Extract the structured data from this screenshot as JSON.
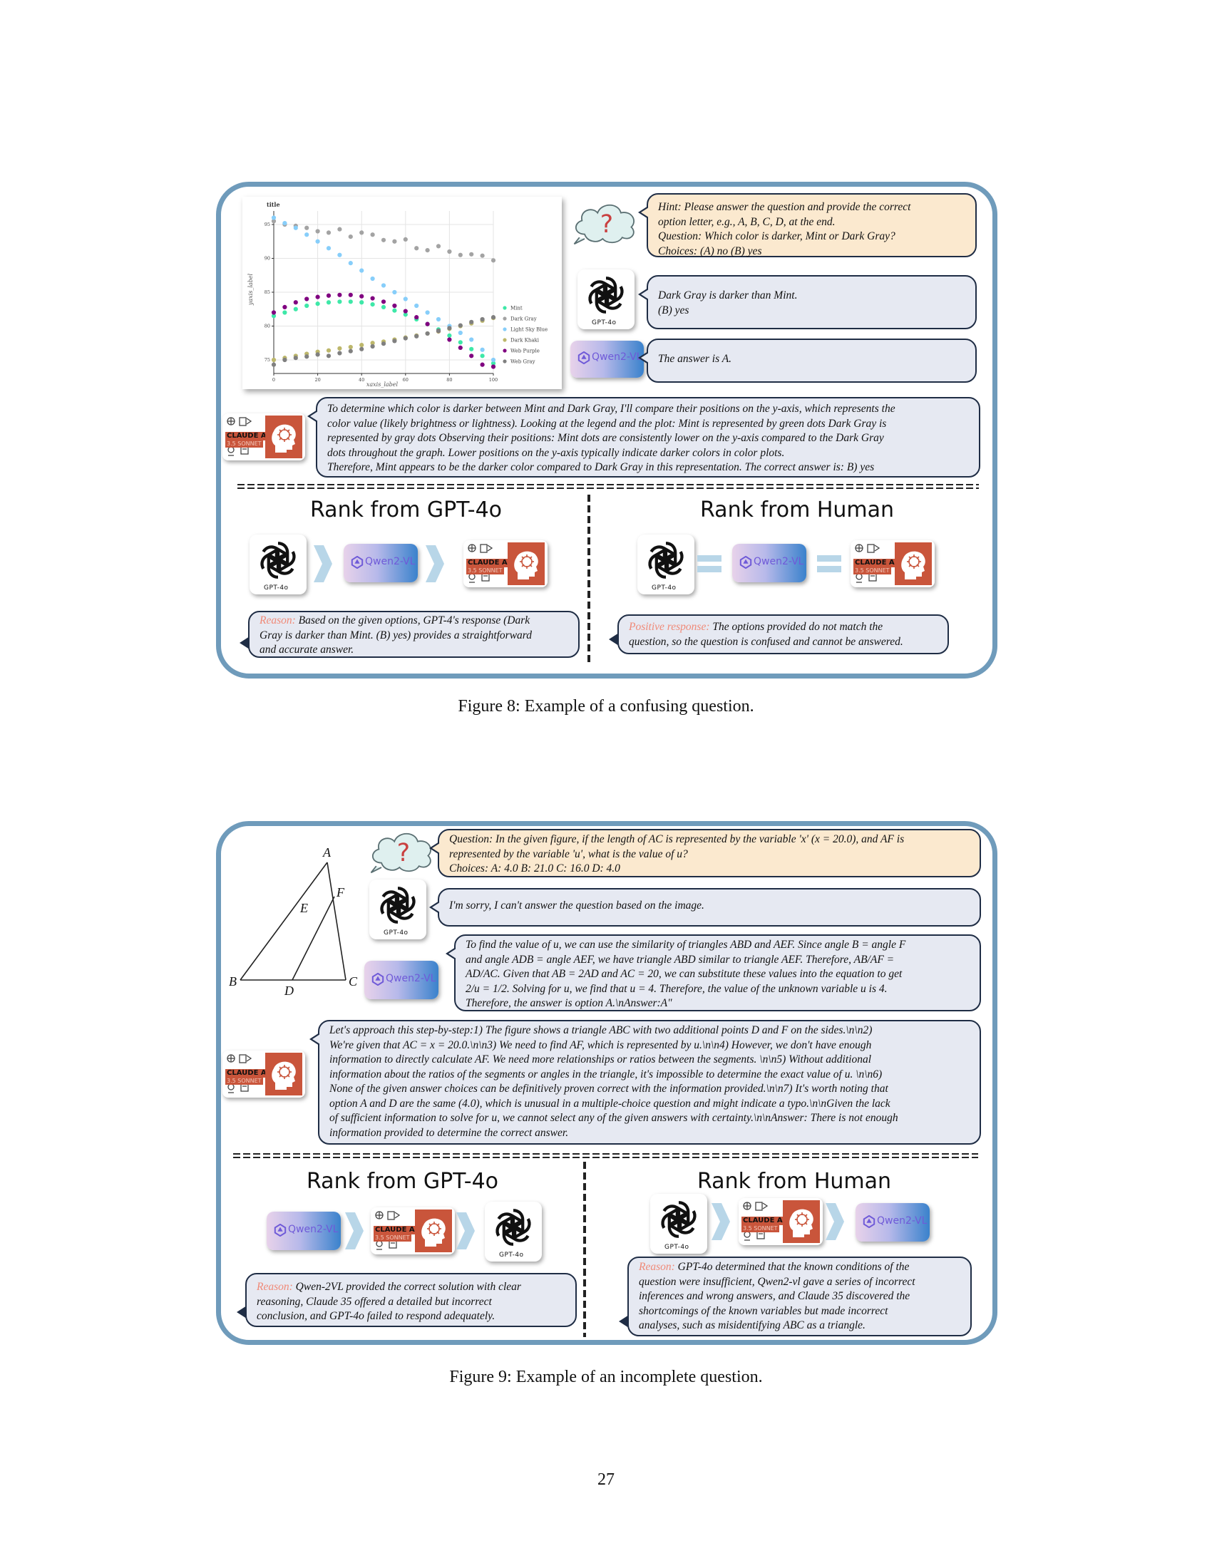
{
  "figure8": {
    "caption": "Figure 8: Example of a confusing question.",
    "question_bubble": {
      "line1": "Hint: Please answer the question and provide the correct",
      "line2": "option letter, e.g., A, B, C, D, at the end.",
      "line3": "Question: Which color is darker, Mint or Dark Gray?",
      "line4": "Choices: (A) no (B) yes"
    },
    "gpt_answer": {
      "line1": "Dark Gray is darker than Mint.",
      "line2": "(B) yes"
    },
    "qwen_answer": "The answer is A.",
    "claude_answer": {
      "line1": "To determine which color is darker between Mint and Dark Gray, I'll compare their positions on the y-axis, which represents the",
      "line2": "color value (likely brightness or lightness). Looking at the legend and the plot: Mint is represented by green dots Dark Gray is",
      "line3": "represented by gray dots Observing their positions: Mint dots are consistently lower on the y-axis compared to the Dark Gray",
      "line4": "dots throughout the graph. Lower positions on the y-axis typically indicate darker colors in color plots.",
      "line5": "Therefore, Mint appears to be the darker color compared to Dark Gray in this representation. The correct answer is: B) yes"
    },
    "rank_gpt": {
      "title": "Rank from GPT-4o",
      "reason_label": "Reason:",
      "reason_l1": " Based on the given options, GPT-4's response (Dark",
      "reason_l2": "Gray is darker than Mint. (B) yes) provides a straightforward",
      "reason_l3": "and accurate answer."
    },
    "rank_human": {
      "title": "Rank from Human",
      "reason_label": "Positive response:",
      "reason_l1": " The options provided do not match the",
      "reason_l2": "question, so the question is confused and cannot be answered."
    }
  },
  "figure9": {
    "caption": "Figure 9: Example of an incomplete question.",
    "geometry_labels": {
      "a": "A",
      "b": "B",
      "c": "C",
      "d": "D",
      "e": "E",
      "f": "F"
    },
    "question_bubble": {
      "line1": "Question: In the given figure, if the length of AC is represented by the variable 'x' (x = 20.0), and AF is",
      "line2": "represented by the variable 'u', what is the value of u?",
      "line3": "Choices: A: 4.0 B: 21.0 C: 16.0 D: 4.0"
    },
    "gpt_answer": "I'm sorry, I can't answer the question based on the image.",
    "qwen_answer": {
      "line1": "To find the value of u, we can use the similarity of triangles ABD and AEF. Since angle B = angle F",
      "line2": "and angle ADB = angle AEF, we have triangle ABD similar to triangle AEF. Therefore, AB/AF =",
      "line3": "AD/AC. Given that AB = 2AD and AC = 20, we can substitute these values into the equation to get",
      "line4": "2/u = 1/2. Solving for u, we find that u = 4. Therefore, the value of the unknown variable u is 4.",
      "line5": "Therefore, the answer is option A.\\nAnswer:A\""
    },
    "claude_answer": {
      "line1": "Let's approach this step-by-step:1) The figure shows a triangle ABC with two additional points D and F on the sides.\\n\\n2)",
      "line2": "We're given that AC = x = 20.0.\\n\\n3) We need to find AF, which is represented by u.\\n\\n4) However, we don't have enough",
      "line3": "information to directly calculate AF. We need more relationships or ratios between the segments. \\n\\n5) Without additional",
      "line4": "information about the ratios of the segments or angles in the triangle, it's impossible to determine the exact value of u. \\n\\n6)",
      "line5": "None of the given answer choices can be definitively proven correct with the information provided.\\n\\n7) It's worth noting that",
      "line6": "option A and D are the same (4.0), which is unusual in a multiple-choice question and might indicate a typo.\\n\\nGiven the lack",
      "line7": "of sufficient information to solve for u, we cannot select any of the given answers with certainty.\\n\\nAnswer: There is not enough",
      "line8": "information provided to determine the correct answer."
    },
    "rank_gpt": {
      "title": "Rank from GPT-4o",
      "reason_label": "Reason:",
      "reason_l1": " Qwen-2VL provided the correct solution with clear",
      "reason_l2": "reasoning, Claude 35 offered a detailed but incorrect",
      "reason_l3": "conclusion, and GPT-4o failed to respond adequately."
    },
    "rank_human": {
      "title": "Rank from Human",
      "reason_label": "Reason:",
      "reason_l1": " GPT-4o determined that the known conditions of the",
      "reason_l2": "question were insufficient, Qwen2-vl gave a series of incorrect",
      "reason_l3": "inferences and wrong answers, and Claude 35 discovered the",
      "reason_l4": "shortcomings of the known variables but made incorrect",
      "reason_l5": "analyses, such as misidentifying ABC as a triangle."
    }
  },
  "logos": {
    "gpt_label": "GPT-4o",
    "qwen_label": "Qwen2-VL",
    "claude_label": "CLAUDE AI",
    "claude_sub": "3.5 SONNET"
  },
  "page_number": "27",
  "colors": {
    "panel_border": "#6f9bbb",
    "bubble_fill": "#e6e9f2",
    "question_fill": "#fbe9cf",
    "reason_label": "#f08a78"
  },
  "chart_data": {
    "type": "scatter",
    "title": "title",
    "xlabel": "xaxis_label",
    "ylabel": "yaxis_label",
    "xlim": [
      0,
      100
    ],
    "ylim": [
      73,
      97
    ],
    "xticks": [
      0,
      20,
      40,
      60,
      80,
      100
    ],
    "yticks": [
      75,
      80,
      85,
      90,
      95
    ],
    "grid": true,
    "legend_position": "right",
    "series": [
      {
        "name": "Mint",
        "color": "#3ee8a8",
        "x": [
          0,
          5,
          10,
          15,
          20,
          25,
          30,
          35,
          40,
          45,
          50,
          55,
          60,
          65,
          70,
          75,
          80,
          85,
          90,
          95,
          100
        ],
        "y": [
          81.5,
          82,
          82.5,
          83,
          83.3,
          83.5,
          83.6,
          83.6,
          83.5,
          83.2,
          82.8,
          82.3,
          81.7,
          81,
          80.3,
          79.5,
          78.6,
          77.6,
          76.6,
          75.6,
          74.5
        ]
      },
      {
        "name": "Dark Gray",
        "color": "#a3a3a3",
        "x": [
          0,
          5,
          10,
          15,
          20,
          25,
          30,
          35,
          40,
          45,
          50,
          55,
          60,
          65,
          70,
          75,
          80,
          85,
          90,
          95,
          100
        ],
        "y": [
          95.5,
          95,
          94.8,
          94.5,
          94,
          93.8,
          94.3,
          93.2,
          93.8,
          93.5,
          92.7,
          92.5,
          92.8,
          91.5,
          91.2,
          91.8,
          91,
          90.5,
          90.6,
          90.4,
          89.7
        ]
      },
      {
        "name": "Light Sky Blue",
        "color": "#87cefa",
        "x": [
          0,
          5,
          10,
          15,
          20,
          25,
          30,
          35,
          40,
          45,
          50,
          55,
          60,
          65,
          70,
          75,
          80,
          85,
          90,
          95,
          100
        ],
        "y": [
          96,
          95.2,
          94.5,
          93.5,
          92.5,
          91.5,
          90.5,
          89.3,
          88.2,
          87,
          86,
          85,
          84,
          83,
          82,
          81,
          80,
          79,
          78,
          76.5,
          75
        ]
      },
      {
        "name": "Dark Khaki",
        "color": "#bdb76b",
        "x": [
          0,
          5,
          10,
          15,
          20,
          25,
          30,
          35,
          40,
          45,
          50,
          55,
          60,
          65,
          70,
          75,
          80,
          85,
          90,
          95,
          100
        ],
        "y": [
          75,
          75.3,
          75.6,
          75.9,
          76.2,
          76.4,
          76.7,
          76.9,
          77.2,
          77.5,
          77.7,
          78,
          78.3,
          78.6,
          78.9,
          79.2,
          79.6,
          80,
          80.4,
          80.8,
          81.2
        ]
      },
      {
        "name": "Web Purple",
        "color": "#800080",
        "x": [
          0,
          5,
          10,
          15,
          20,
          25,
          30,
          35,
          40,
          45,
          50,
          55,
          60,
          65,
          70,
          75,
          80,
          85,
          90,
          95,
          100
        ],
        "y": [
          82,
          82.8,
          83.5,
          84,
          84.3,
          84.5,
          84.6,
          84.6,
          84.4,
          84.1,
          83.6,
          83,
          82.2,
          81.3,
          80.3,
          79.3,
          78,
          76.8,
          75.6,
          74.3,
          74
        ]
      },
      {
        "name": "Web Gray",
        "color": "#808080",
        "x": [
          0,
          5,
          10,
          15,
          20,
          25,
          30,
          35,
          40,
          45,
          50,
          55,
          60,
          65,
          70,
          75,
          80,
          85,
          90,
          95,
          100
        ],
        "y": [
          74.3,
          75,
          75.3,
          75.5,
          75.8,
          75.6,
          76,
          76.3,
          76.6,
          77,
          77.4,
          77.8,
          78.2,
          78.5,
          78.9,
          79.3,
          79.7,
          80.1,
          80.6,
          81,
          81.3
        ]
      }
    ]
  }
}
